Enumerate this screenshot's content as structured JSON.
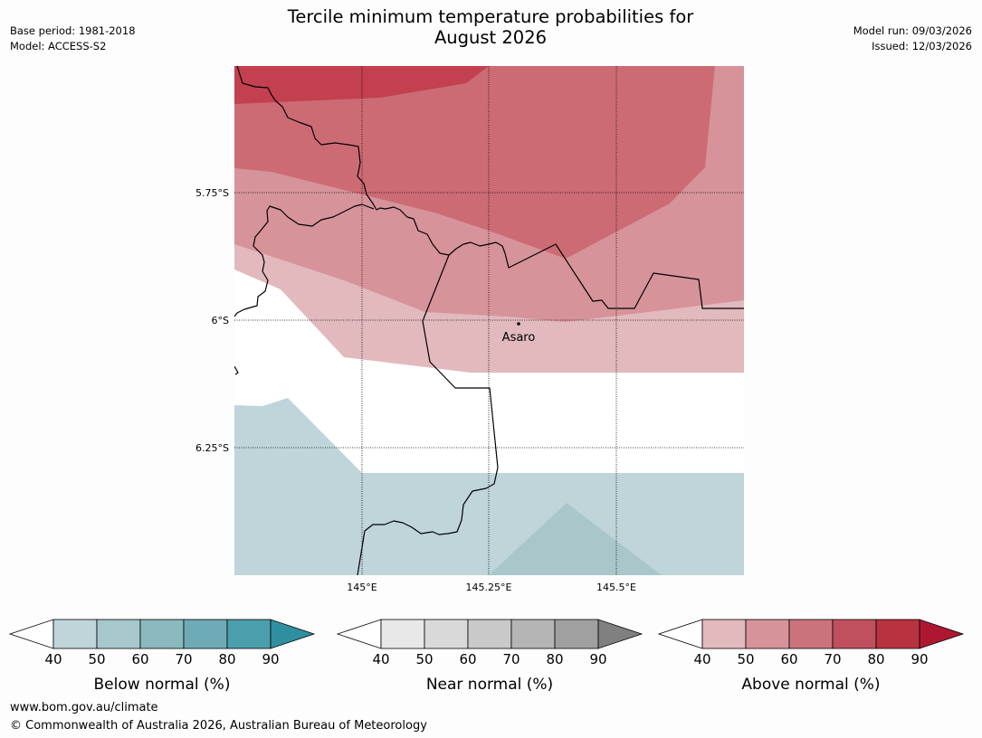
{
  "header": {
    "title_line1": "Tercile minimum temperature probabilities for",
    "title_line2": "August 2026",
    "base_period": "Base period: 1981-2018",
    "model": "Model: ACCESS-S2",
    "model_run": "Model run: 09/03/2026",
    "issued": "Issued: 12/03/2026"
  },
  "map": {
    "lat_labels": [
      "5.75°S",
      "6°S",
      "6.25°S"
    ],
    "lon_labels": [
      "145°E",
      "145.25°E",
      "145.5°E"
    ],
    "place": {
      "name": "Asaro"
    },
    "colors": {
      "above_90": "#b01c3e",
      "above_80": "#c2404f",
      "above_70": "#cc6a74",
      "above_60": "#cd6b74",
      "above_50": "#d7939a",
      "above_40": "#e2b9bd",
      "below_40": "#bfd5da",
      "below_50": "#a9c7cb"
    }
  },
  "legends": [
    {
      "name": "below",
      "label": "Below normal (%)",
      "ticks": [
        "40",
        "50",
        "60",
        "70",
        "80",
        "90"
      ],
      "colors": [
        "#bfd5da",
        "#a6c8cd",
        "#8ab9c0",
        "#6eabb6",
        "#4b9fac",
        "#2f8fa0"
      ]
    },
    {
      "name": "near",
      "label": "Near normal (%)",
      "ticks": [
        "40",
        "50",
        "60",
        "70",
        "80",
        "90"
      ],
      "colors": [
        "#e8e8e8",
        "#d9d9d9",
        "#c9c9c9",
        "#b5b5b5",
        "#a0a0a0",
        "#808080"
      ]
    },
    {
      "name": "above",
      "label": "Above normal (%)",
      "ticks": [
        "40",
        "50",
        "60",
        "70",
        "80",
        "90"
      ],
      "colors": [
        "#e2b9bd",
        "#d7939a",
        "#ca737c",
        "#c0505e",
        "#b8323f",
        "#ad1732"
      ]
    }
  ],
  "footer": {
    "url": "www.bom.gov.au/climate",
    "copyright": "© Commonwealth of Australia 2026, Australian Bureau of Meteorology"
  }
}
